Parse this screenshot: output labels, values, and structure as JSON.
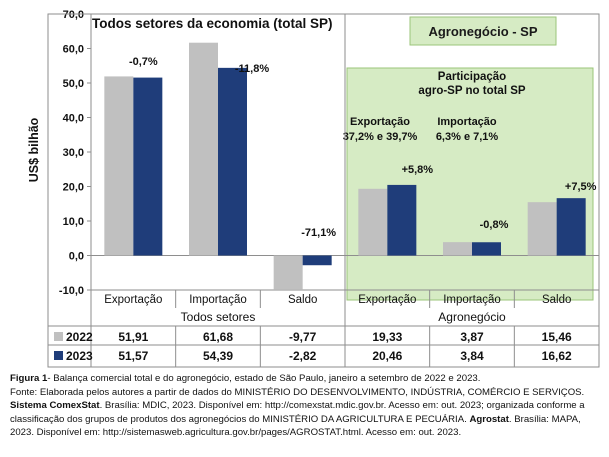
{
  "chart_data": {
    "type": "bar",
    "ylabel": "US$ bilhão",
    "ylim": [
      -10,
      70
    ],
    "yticks": [
      "70,0",
      "60,0",
      "50,0",
      "40,0",
      "30,0",
      "20,0",
      "10,0",
      "0,0",
      "-10,0"
    ],
    "grid": false,
    "groups": [
      {
        "title": "Todos setores da economia (total SP)",
        "label": "Todos setores"
      },
      {
        "title": "Agronegócio - SP",
        "label": "Agronegócio"
      }
    ],
    "categories": [
      "Exportação",
      "Importação",
      "Saldo",
      "Exportação",
      "Importação",
      "Saldo"
    ],
    "series": [
      {
        "name": "2022",
        "color": "#c0c0c0",
        "values": [
          51.91,
          61.68,
          -9.77,
          19.33,
          3.87,
          15.46
        ],
        "labels": [
          "51,91",
          "61,68",
          "-9,77",
          "19,33",
          "3,87",
          "15,46"
        ]
      },
      {
        "name": "2023",
        "color": "#1f3d7a",
        "values": [
          51.57,
          54.39,
          -2.82,
          20.46,
          3.84,
          16.62
        ],
        "labels": [
          "51,57",
          "54,39",
          "-2,82",
          "20,46",
          "3,84",
          "16,62"
        ]
      }
    ],
    "annotations": [
      "-0,7%",
      "-11,8%",
      "-71,1%",
      "+5,8%",
      "-0,8%",
      "+7,5%"
    ],
    "participation": {
      "title_line1": "Participação",
      "title_line2": "agro-SP no total SP",
      "export_label": "Exportação",
      "export_value": "37,2% e 39,7%",
      "import_label": "Importação",
      "import_value": "6,3% e 7,1%"
    },
    "colors": {
      "agro_bg": "#d6ebc4",
      "agro_border": "#9bc47a",
      "frame": "#8e8e8e"
    }
  },
  "caption": {
    "fig_label": "Figura 1",
    "fig_text": "- Balança comercial total e do agronegócio, estado de São Paulo, janeiro a setembro de 2022 e 2023.",
    "source_line": "Fonte: Elaborada pelos autores a partir de dados do MINISTÉRIO DO DESENVOLVIMENTO, INDÚSTRIA, COMÉRCIO E SERVIÇOS.",
    "sys1_bold": "Sistema ComexStat",
    "sys1_text": ". Brasília: MDIC, 2023. Disponível em: http://comexstat.mdic.gov.br. Acesso em: out. 2023; organizada conforme a classificação dos grupos de produtos dos agronegócios do MINISTÉRIO DA AGRICULTURA E PECUÁRIA. ",
    "sys2_bold": "Agrostat",
    "sys2_text": ". Brasília: MAPA, 2023. Disponível em: http://sistemasweb.agricultura.gov.br/pages/AGROSTAT.html. Acesso em: out. 2023."
  }
}
